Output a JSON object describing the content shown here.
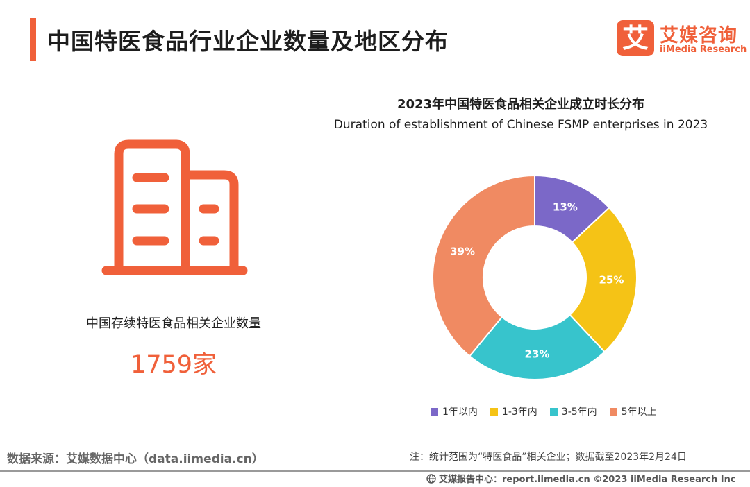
{
  "header": {
    "title": "中国特医食品行业企业数量及地区分布",
    "brand_cn": "艾媒咨询",
    "brand_en": "iiMedia Research",
    "brand_mark": "艾"
  },
  "colors": {
    "accent": "#f0603a",
    "slice_1": "#7b68c8",
    "slice_2": "#f5c316",
    "slice_3": "#37c4cc",
    "slice_4": "#f08a62"
  },
  "stat": {
    "icon": "office-building-icon",
    "label": "中国存续特医食品相关企业数量",
    "value": "1759家"
  },
  "chart_data": {
    "type": "pie",
    "title": "2023年中国特医食品相关企业成立时长分布",
    "subtitle": "Duration of establishment of  Chinese FSMP enterprises in 2023",
    "categories": [
      "1年以内",
      "1-3年内",
      "3-5年内",
      "5年以上"
    ],
    "values": [
      13,
      25,
      23,
      39
    ],
    "labels": [
      "13%",
      "25%",
      "23%",
      "39%"
    ],
    "colors": [
      "#7b68c8",
      "#f5c316",
      "#37c4cc",
      "#f08a62"
    ],
    "legend": "bottom"
  },
  "footer": {
    "source": "数据来源：艾媒数据中心（data.iimedia.cn）",
    "note": "注：统计范围为“特医食品”相关企业；数据截至2023年2月24日",
    "report": "艾媒报告中心：report.iimedia.cn  ©2023  iiMedia Research  Inc"
  }
}
